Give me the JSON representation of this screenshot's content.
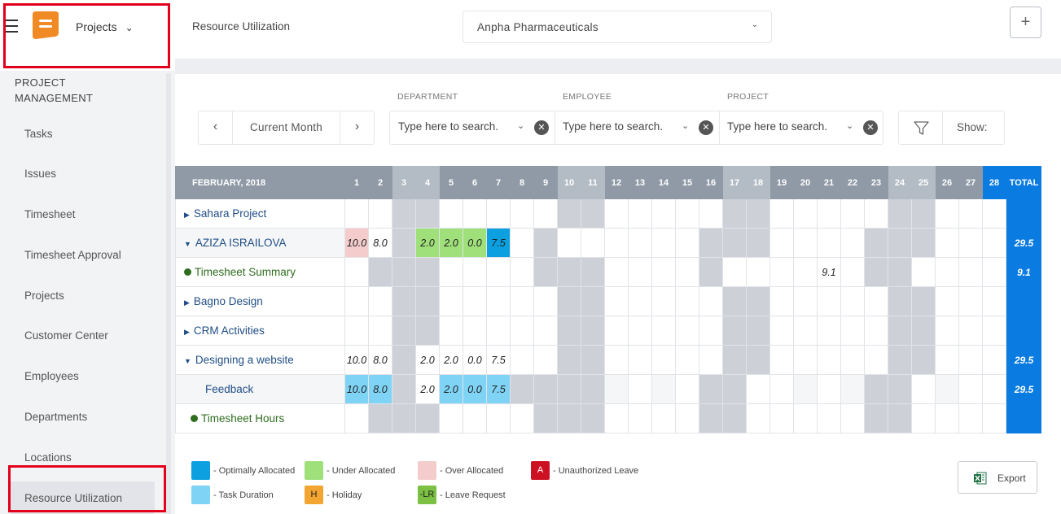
{
  "nav": {
    "module": "Projects",
    "section": "PROJECT MANAGEMENT",
    "items": [
      "Tasks",
      "Issues",
      "Timesheet",
      "Timesheet Approval",
      "Projects",
      "Customer Center",
      "Employees",
      "Departments",
      "Locations",
      "Resource Utilization"
    ],
    "active": "Resource Utilization"
  },
  "header": {
    "title": "Resource Utilization",
    "company": "Anpha Pharmaceuticals",
    "add_label": "+"
  },
  "filters": {
    "period": "Current Month",
    "department_label": "DEPARTMENT",
    "employee_label": "EMPLOYEE",
    "project_label": "PROJECT",
    "placeholder": "Type here to search.",
    "show_label": "Show:"
  },
  "grid": {
    "month_label": "FEBRUARY, 2018",
    "total_label": "TOTAL",
    "days": [
      "1",
      "2",
      "3",
      "4",
      "5",
      "6",
      "7",
      "8",
      "9",
      "10",
      "11",
      "12",
      "13",
      "14",
      "15",
      "16",
      "17",
      "18",
      "19",
      "20",
      "21",
      "22",
      "23",
      "24",
      "25",
      "26",
      "27",
      "28"
    ],
    "rows": [
      {
        "name": "Sahara Project",
        "type": "project",
        "cells": {},
        "total": ""
      },
      {
        "name": "AZIZA ISRAILOVA",
        "type": "employee",
        "cells": {
          "1": "10.0",
          "2": "8.0",
          "4": "2.0",
          "5": "2.0",
          "6": "0.0",
          "7": "7.5"
        },
        "total": "29.5"
      },
      {
        "name": "Timesheet Summary",
        "type": "summary",
        "cells": {
          "21": "9.1"
        },
        "total": "9.1"
      },
      {
        "name": "Bagno Design",
        "type": "project",
        "cells": {},
        "total": ""
      },
      {
        "name": "CRM Activities",
        "type": "project",
        "cells": {},
        "total": ""
      },
      {
        "name": "Designing a website",
        "type": "project-open",
        "cells": {
          "1": "10.0",
          "2": "8.0",
          "4": "2.0",
          "5": "2.0",
          "6": "0.0",
          "7": "7.5"
        },
        "total": "29.5"
      },
      {
        "name": "Feedback",
        "type": "task",
        "cells": {
          "1": "10.0",
          "2": "8.0",
          "4": "2.0",
          "5": "2.0",
          "6": "0.0",
          "7": "7.5"
        },
        "total": "29.5"
      },
      {
        "name": "Timesheet Hours",
        "type": "summary",
        "cells": {},
        "total": ""
      }
    ]
  },
  "legend": [
    {
      "label": "- Optimally Allocated",
      "color": "#0ca0e0"
    },
    {
      "label": "- Under Allocated",
      "color": "#9fe07a"
    },
    {
      "label": "- Over Allocated",
      "color": "#f4cccc"
    },
    {
      "label": "- Unauthorized Leave",
      "color": "#cc1122",
      "mark": "A"
    },
    {
      "label": "- Task Duration",
      "color": "#7fd3f5"
    },
    {
      "label": "- Holiday",
      "color": "#f2a531",
      "mark": "H"
    },
    {
      "label": "- Leave Request",
      "color": "#7cc043",
      "mark": "-LR"
    }
  ],
  "export_label": "Export"
}
